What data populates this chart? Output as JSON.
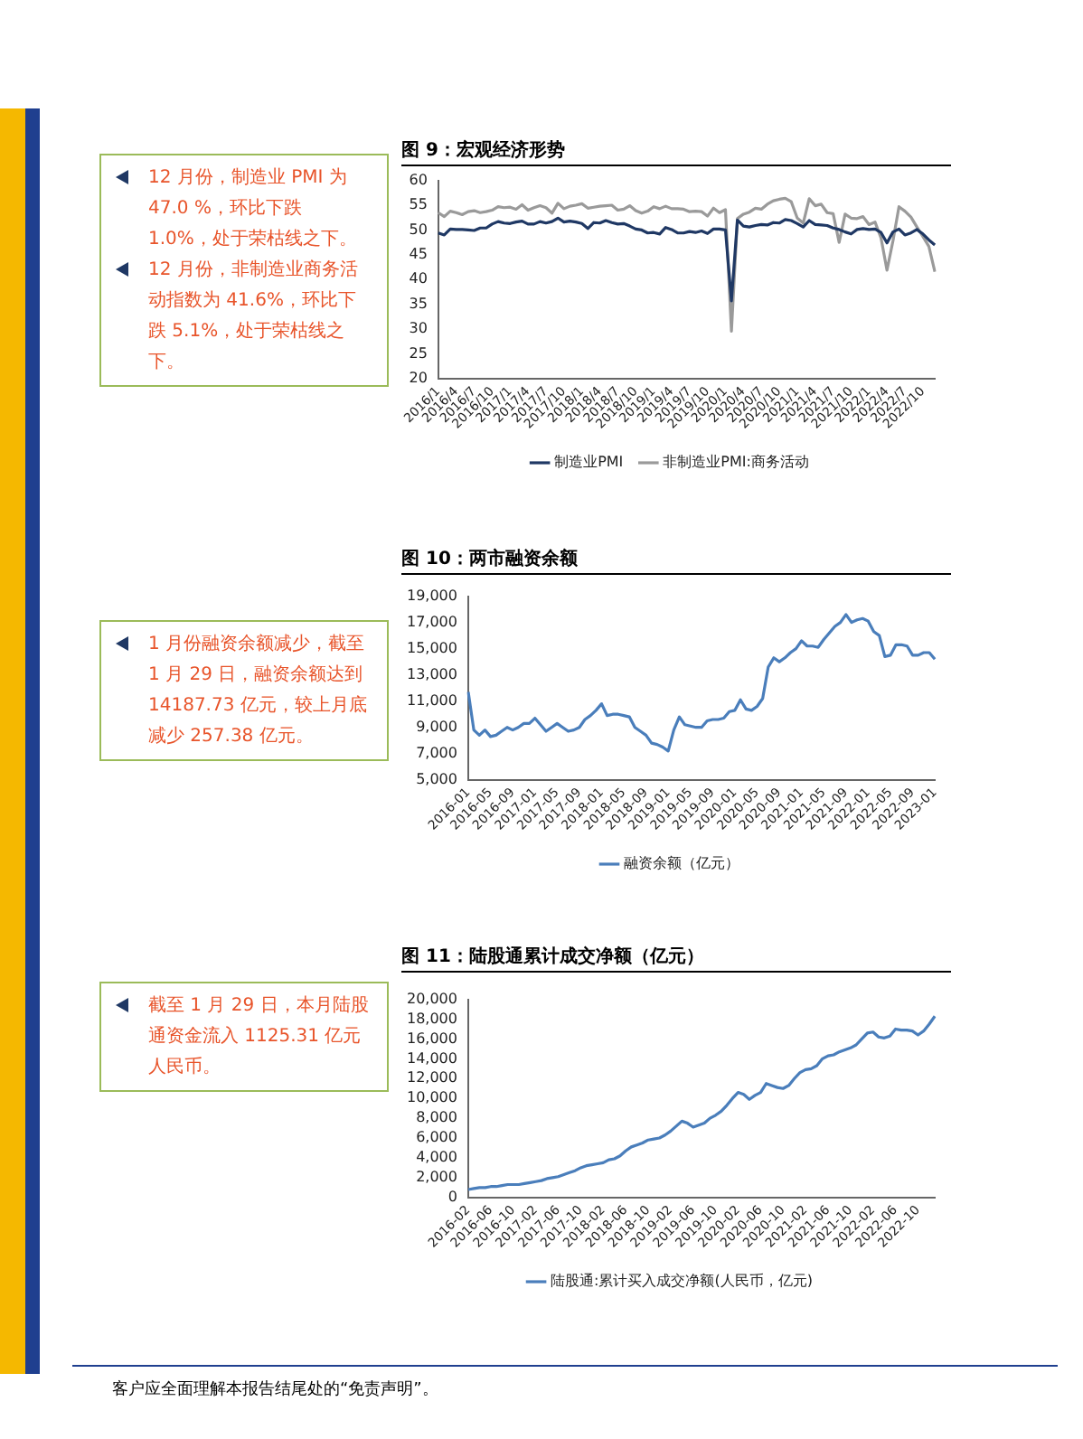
{
  "chart_data": [
    {
      "type": "line",
      "title": "图 9：宏观经济形势",
      "annotations": [
        "12 月份，制造业 PMI 为 47.0 %，环比下跌 1.0%，处于荣枯线之下。",
        "12 月份，非制造业商务活动指数为 41.6%，环比下跌 5.1%，处于荣枯线之下。"
      ],
      "categories": [
        "2016/1",
        null,
        null,
        "2016/4",
        null,
        null,
        "2016/7",
        null,
        null,
        "2016/10",
        null,
        null,
        "2017/1",
        null,
        null,
        "2017/4",
        null,
        null,
        "2017/7",
        null,
        null,
        "2017/10",
        null,
        null,
        "2018/1",
        null,
        null,
        "2018/4",
        null,
        null,
        "2018/7",
        null,
        null,
        "2018/10",
        null,
        null,
        "2019/1",
        null,
        null,
        "2019/4",
        null,
        null,
        "2019/7",
        null,
        null,
        "2019/10",
        null,
        null,
        "2020/1",
        null,
        null,
        "2020/4",
        null,
        null,
        "2020/7",
        null,
        null,
        "2020/10",
        null,
        null,
        "2021/1",
        null,
        null,
        "2021/4",
        null,
        null,
        "2021/7",
        null,
        null,
        "2021/10",
        null,
        null,
        "2022/1",
        null,
        null,
        "2022/4",
        null,
        null,
        "2022/7",
        null,
        null,
        "2022/10",
        null,
        null
      ],
      "series": [
        {
          "name": "制造业PMI",
          "color": "#1f3864",
          "values": [
            49.4,
            49.0,
            50.2,
            50.1,
            50.1,
            50.0,
            49.9,
            50.4,
            50.4,
            51.2,
            51.7,
            51.4,
            51.3,
            51.6,
            51.8,
            51.2,
            51.2,
            51.7,
            51.4,
            51.7,
            52.4,
            51.6,
            51.8,
            51.6,
            51.3,
            50.3,
            51.5,
            51.4,
            51.9,
            51.5,
            51.2,
            51.3,
            50.8,
            50.2,
            50.0,
            49.4,
            49.5,
            49.2,
            50.5,
            50.1,
            49.4,
            49.4,
            49.7,
            49.5,
            49.8,
            49.3,
            50.2,
            50.2,
            50.0,
            35.7,
            52.0,
            50.8,
            50.6,
            50.9,
            51.1,
            51.0,
            51.5,
            51.4,
            52.1,
            51.9,
            51.3,
            50.6,
            51.9,
            51.1,
            51.0,
            50.9,
            50.4,
            50.1,
            49.6,
            49.2,
            50.1,
            50.3,
            50.1,
            50.2,
            49.5,
            47.4,
            49.6,
            50.2,
            49.0,
            49.4,
            50.1,
            49.2,
            48.0,
            47.0
          ]
        },
        {
          "name": "非制造业PMI:商务活动",
          "color": "#9a9a9a",
          "values": [
            53.5,
            52.7,
            53.8,
            53.5,
            53.1,
            53.7,
            53.9,
            53.5,
            53.7,
            54.0,
            54.7,
            54.5,
            54.6,
            54.2,
            55.1,
            54.0,
            54.5,
            54.9,
            54.5,
            53.4,
            55.4,
            54.3,
            54.8,
            55.0,
            55.3,
            54.4,
            54.6,
            54.8,
            54.9,
            55.0,
            54.0,
            54.2,
            54.9,
            53.9,
            53.4,
            53.8,
            54.7,
            54.3,
            54.8,
            54.3,
            54.3,
            54.2,
            53.7,
            53.8,
            53.7,
            52.8,
            54.4,
            53.5,
            54.1,
            29.6,
            52.3,
            53.2,
            53.6,
            54.4,
            54.2,
            55.2,
            55.9,
            56.2,
            56.4,
            55.7,
            52.4,
            51.4,
            56.3,
            54.9,
            55.2,
            53.5,
            53.3,
            47.5,
            53.2,
            52.4,
            52.3,
            52.7,
            51.1,
            51.6,
            48.4,
            41.9,
            47.8,
            54.7,
            53.8,
            52.6,
            50.6,
            48.7,
            46.7,
            41.6
          ]
        }
      ],
      "ylim": [
        20,
        60
      ],
      "yticks": [
        20,
        25,
        30,
        35,
        40,
        45,
        50,
        55,
        60
      ],
      "grid": false,
      "legend": "bottom",
      "marker": "none",
      "line_style": "solid"
    },
    {
      "type": "line",
      "title": "图 10：两市融资余额",
      "annotations": [
        "1 月份融资余额减少，截至 1 月 29 日，融资余额达到 14187.73 亿元，较上月底减少 257.38 亿元。"
      ],
      "categories": [
        "2016-01",
        null,
        null,
        null,
        "2016-05",
        null,
        null,
        null,
        "2016-09",
        null,
        null,
        null,
        "2017-01",
        null,
        null,
        null,
        "2017-05",
        null,
        null,
        null,
        "2017-09",
        null,
        null,
        null,
        "2018-01",
        null,
        null,
        null,
        "2018-05",
        null,
        null,
        null,
        "2018-09",
        null,
        null,
        null,
        "2019-01",
        null,
        null,
        null,
        "2019-05",
        null,
        null,
        null,
        "2019-09",
        null,
        null,
        null,
        "2020-01",
        null,
        null,
        null,
        "2020-05",
        null,
        null,
        null,
        "2020-09",
        null,
        null,
        null,
        "2021-01",
        null,
        null,
        null,
        "2021-05",
        null,
        null,
        null,
        "2021-09",
        null,
        null,
        null,
        "2022-01",
        null,
        null,
        null,
        "2022-05",
        null,
        null,
        null,
        "2022-09",
        null,
        null,
        null,
        "2023-01"
      ],
      "series": [
        {
          "name": "融资余额（亿元）",
          "color": "#4a7ebb",
          "values": [
            11700,
            8800,
            8400,
            8800,
            8300,
            8400,
            8700,
            9000,
            8800,
            9000,
            9300,
            9300,
            9700,
            9200,
            8700,
            9000,
            9300,
            9000,
            8700,
            8800,
            9000,
            9600,
            9900,
            10300,
            10800,
            9900,
            10000,
            10000,
            9900,
            9800,
            9000,
            8700,
            8400,
            7800,
            7700,
            7500,
            7200,
            8800,
            9800,
            9200,
            9100,
            9000,
            9000,
            9500,
            9600,
            9600,
            9700,
            10200,
            10300,
            11100,
            10400,
            10300,
            10600,
            11200,
            13600,
            14300,
            14000,
            14300,
            14700,
            15000,
            15600,
            15200,
            15200,
            15100,
            15700,
            16200,
            16700,
            17000,
            17600,
            17000,
            17200,
            17300,
            17100,
            16300,
            16000,
            14400,
            14500,
            15300,
            15300,
            15200,
            14500,
            14500,
            14700,
            14700,
            14200
          ]
        }
      ],
      "ylim": [
        5000,
        19000
      ],
      "yticks": [
        {
          "value": 5000,
          "label": "5,000"
        },
        {
          "value": 7000,
          "label": "7,000"
        },
        {
          "value": 9000,
          "label": "9,000"
        },
        {
          "value": 11000,
          "label": "11,000"
        },
        {
          "value": 13000,
          "label": "13,000"
        },
        {
          "value": 15000,
          "label": "15,000"
        },
        {
          "value": 17000,
          "label": "17,000"
        },
        {
          "value": 19000,
          "label": "19,000"
        }
      ],
      "grid": false,
      "legend": "bottom",
      "marker": "none",
      "line_style": "solid"
    },
    {
      "type": "line",
      "title": "图 11：陆股通累计成交净额（亿元）",
      "annotations": [
        "截至 1 月 29 日，本月陆股通资金流入 1125.31 亿元人民币。",
        "客户应全面理解本报告结尾处的“免责声明”。"
      ],
      "categories": [
        "2016-02",
        null,
        null,
        null,
        "2016-06",
        null,
        null,
        null,
        "2016-10",
        null,
        null,
        null,
        "2017-02",
        null,
        null,
        null,
        "2017-06",
        null,
        null,
        null,
        "2017-10",
        null,
        null,
        null,
        "2018-02",
        null,
        null,
        null,
        "2018-06",
        null,
        null,
        null,
        "2018-10",
        null,
        null,
        null,
        "2019-02",
        null,
        null,
        null,
        "2019-06",
        null,
        null,
        null,
        "2019-10",
        null,
        null,
        null,
        "2020-02",
        null,
        null,
        null,
        "2020-06",
        null,
        null,
        null,
        "2020-10",
        null,
        null,
        null,
        "2021-02",
        null,
        null,
        null,
        "2021-06",
        null,
        null,
        null,
        "2021-10",
        null,
        null,
        null,
        "2022-02",
        null,
        null,
        null,
        "2022-06",
        null,
        null,
        null,
        "2022-10",
        null,
        null,
        null
      ],
      "series": [
        {
          "name": "陆股通:累计买入成交净额(人民币，亿元)",
          "color": "#4a7ebb",
          "values": [
            800,
            900,
            1000,
            1000,
            1100,
            1100,
            1200,
            1300,
            1300,
            1300,
            1400,
            1500,
            1600,
            1700,
            1900,
            2000,
            2100,
            2300,
            2500,
            2700,
            3000,
            3200,
            3300,
            3400,
            3500,
            3800,
            3900,
            4200,
            4700,
            5100,
            5300,
            5500,
            5800,
            5900,
            6000,
            6300,
            6700,
            7200,
            7700,
            7500,
            7100,
            7300,
            7500,
            8000,
            8300,
            8700,
            9300,
            10000,
            10600,
            10400,
            9900,
            10300,
            10600,
            11500,
            11300,
            11100,
            11000,
            11300,
            12000,
            12600,
            12900,
            13000,
            13300,
            14000,
            14300,
            14400,
            14700,
            14900,
            15100,
            15400,
            16000,
            16600,
            16700,
            16200,
            16100,
            16300,
            17000,
            16900,
            16900,
            16800,
            16400,
            16800,
            17500,
            18300
          ]
        }
      ],
      "ylim": [
        0,
        20000
      ],
      "yticks": [
        0,
        {
          "value": 2000,
          "label": "2,000"
        },
        {
          "value": 4000,
          "label": "4,000"
        },
        {
          "value": 6000,
          "label": "6,000"
        },
        {
          "value": 8000,
          "label": "8,000"
        },
        {
          "value": 10000,
          "label": "10,000"
        },
        {
          "value": 12000,
          "label": "12,000"
        },
        {
          "value": 14000,
          "label": "14,000"
        },
        {
          "value": 16000,
          "label": "16,000"
        },
        {
          "value": 18000,
          "label": "18,000"
        },
        {
          "value": 20000,
          "label": "20,000"
        }
      ],
      "grid": false,
      "legend": "bottom",
      "marker": "none",
      "line_style": "solid"
    }
  ]
}
